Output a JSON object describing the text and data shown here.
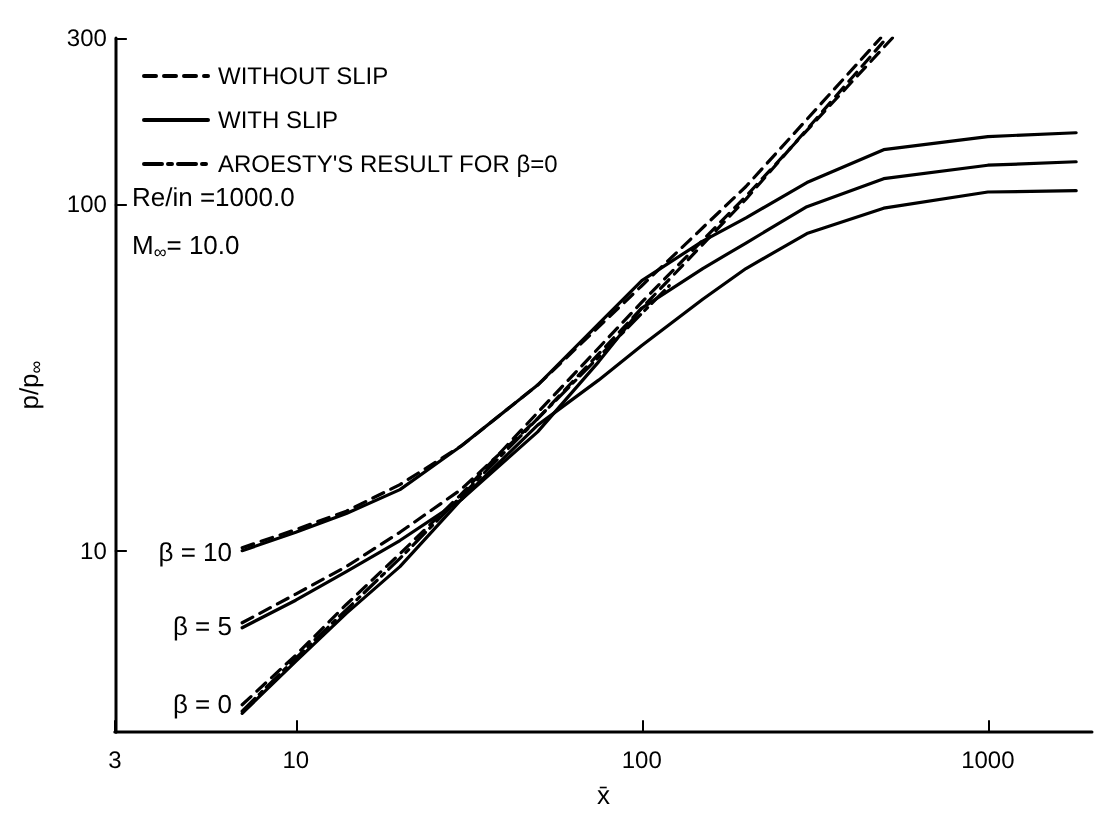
{
  "chart_data": {
    "type": "line",
    "xlabel": "x̄",
    "ylabel": "p/p$_{∞}$",
    "log": "xy",
    "xlim": [
      3,
      2000
    ],
    "ylim": [
      3,
      300
    ],
    "xticks": [
      3,
      10,
      100,
      1000
    ],
    "yticks": [
      10,
      100,
      300
    ],
    "grid": false,
    "legend": "top left",
    "marker": "none",
    "series": [
      {
        "name": "WITHOUT SLIP",
        "color": "#000000",
        "line_style": "dashed",
        "x": [
          7,
          10,
          14,
          20,
          30,
          50,
          100,
          200,
          530
        ],
        "values": [
          3.6,
          5,
          7,
          9.8,
          14.5,
          25,
          52,
          105,
          300
        ]
      },
      {
        "color": "#000000",
        "line_style": "dashed",
        "x": [
          7,
          10,
          14,
          20,
          30,
          50,
          100,
          200,
          510
        ],
        "values": [
          6.2,
          7.5,
          9,
          11.3,
          15,
          24,
          50,
          103,
          300
        ]
      },
      {
        "color": "#000000",
        "line_style": "dashed",
        "x": [
          7,
          10,
          14,
          20,
          30,
          50,
          100,
          200,
          490
        ],
        "values": [
          10.2,
          11.5,
          13,
          15.5,
          20,
          30,
          58,
          112,
          300
        ]
      },
      {
        "name": "WITH SLIP",
        "color": "#000000",
        "line_style": "solid",
        "x": [
          7,
          10,
          14,
          20,
          30,
          50,
          75,
          100,
          150,
          200,
          300,
          500,
          1000,
          1800
        ],
        "values": [
          3.4,
          4.8,
          6.6,
          9,
          14,
          23,
          31,
          39,
          53,
          65,
          82,
          97,
          108,
          109
        ]
      },
      {
        "color": "#000000",
        "line_style": "solid",
        "x": [
          7,
          10,
          14,
          20,
          30,
          50,
          75,
          100,
          150,
          200,
          300,
          500,
          1000,
          1800
        ],
        "values": [
          6,
          7.2,
          8.7,
          10.7,
          14,
          22,
          35,
          50,
          65,
          77,
          98,
          118,
          129,
          132
        ]
      },
      {
        "color": "#000000",
        "line_style": "solid",
        "x": [
          7,
          10,
          14,
          20,
          30,
          50,
          75,
          100,
          150,
          200,
          300,
          500,
          1000,
          1800
        ],
        "values": [
          10,
          11.3,
          12.8,
          15,
          20,
          30,
          45,
          60,
          78,
          91,
          115,
          143,
          156,
          160
        ]
      },
      {
        "name": "AROESTY'S RESULT FOR β=0",
        "color": "#000000",
        "line_style": "dashdot",
        "x": [
          7,
          10,
          20,
          50,
          120
        ],
        "values": [
          3.45,
          4.9,
          9.5,
          24,
          58
        ]
      }
    ],
    "annotations": [
      "Re/in =1000.0",
      "M$_{∞}$= 10.0",
      "β = 10",
      "β = 5",
      "β = 0"
    ]
  }
}
